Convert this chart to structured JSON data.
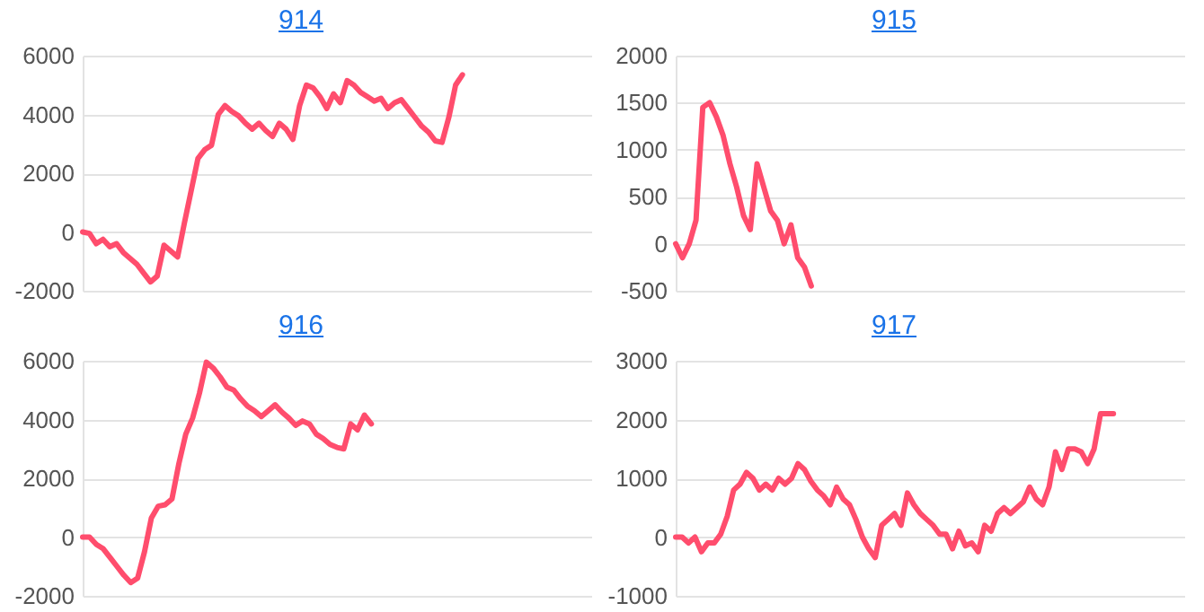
{
  "chart_data": [
    {
      "type": "line",
      "title": "914",
      "categories": [
        null,
        null,
        null,
        null,
        null,
        null,
        null,
        null,
        null,
        null,
        null,
        null,
        null,
        null,
        null,
        null,
        null,
        null,
        null,
        null,
        null,
        null,
        null,
        null,
        null,
        null,
        null,
        null,
        null,
        null,
        null,
        null,
        null,
        null,
        null,
        null,
        null,
        null,
        null,
        null,
        null,
        null,
        null,
        null,
        null,
        null,
        null,
        null,
        null,
        null,
        null,
        null,
        null,
        null,
        null,
        null,
        null,
        null,
        null,
        null,
        null,
        null,
        null,
        null,
        null,
        null,
        null,
        null,
        null,
        null,
        null,
        null,
        null,
        null,
        null,
        null
      ],
      "series": [
        {
          "color": "#ff4d6d",
          "values": [
            0,
            -50,
            -400,
            -250,
            -500,
            -400,
            -700,
            -900,
            -1100,
            -1400,
            -1700,
            -1500,
            -450,
            -650,
            -850,
            300,
            1400,
            2500,
            2800,
            2950,
            4000,
            4300,
            4100,
            3950,
            3700,
            3500,
            3700,
            3450,
            3250,
            3700,
            3500,
            3150,
            4300,
            5000,
            4900,
            4600,
            4200,
            4700,
            4400,
            5150,
            5000,
            4750,
            4600,
            4450,
            4550,
            4200,
            4400,
            4500,
            4200,
            3900,
            3600,
            3400,
            3100,
            3050,
            3900,
            5000,
            5350,
            null,
            null,
            null,
            null,
            null,
            null,
            null,
            null,
            null,
            null,
            null,
            null,
            null,
            null,
            null,
            null,
            null,
            null,
            null
          ]
        }
      ],
      "ylim": [
        -2000,
        6000
      ],
      "yticks": [
        -2000,
        0,
        2000,
        4000,
        6000
      ],
      "grid": "y",
      "tick_labels": "y"
    },
    {
      "type": "line",
      "title": "915",
      "categories": [
        null,
        null,
        null,
        null,
        null,
        null,
        null,
        null,
        null,
        null,
        null,
        null,
        null,
        null,
        null,
        null,
        null,
        null,
        null,
        null,
        null,
        null,
        null,
        null,
        null,
        null,
        null,
        null,
        null,
        null,
        null,
        null,
        null,
        null,
        null,
        null,
        null,
        null,
        null,
        null,
        null,
        null,
        null,
        null,
        null,
        null,
        null,
        null,
        null,
        null,
        null,
        null,
        null,
        null,
        null,
        null,
        null,
        null,
        null,
        null,
        null,
        null,
        null,
        null,
        null,
        null,
        null,
        null,
        null,
        null,
        null,
        null,
        null,
        null,
        null,
        null
      ],
      "series": [
        {
          "color": "#ff4d6d",
          "values": [
            0,
            -150,
            0,
            250,
            1450,
            1500,
            1350,
            1150,
            850,
            600,
            300,
            150,
            850,
            600,
            350,
            250,
            0,
            200,
            -150,
            -250,
            -450,
            null,
            null,
            null,
            null,
            null,
            null,
            null,
            null,
            null,
            null,
            null,
            null,
            null,
            null,
            null,
            null,
            null,
            null,
            null,
            null,
            null,
            null,
            null,
            null,
            null,
            null,
            null,
            null,
            null,
            null,
            null,
            null,
            null,
            null,
            null,
            null,
            null,
            null,
            null,
            null,
            null,
            null,
            null,
            null,
            null,
            null,
            null,
            null,
            null,
            null,
            null,
            null,
            null,
            null,
            null
          ]
        }
      ],
      "ylim": [
        -500,
        2000
      ],
      "yticks": [
        -500,
        0,
        500,
        1000,
        1500,
        2000
      ],
      "grid": "y",
      "tick_labels": "y"
    },
    {
      "type": "line",
      "title": "916",
      "categories": [
        null,
        null,
        null,
        null,
        null,
        null,
        null,
        null,
        null,
        null,
        null,
        null,
        null,
        null,
        null,
        null,
        null,
        null,
        null,
        null,
        null,
        null,
        null,
        null,
        null,
        null,
        null,
        null,
        null,
        null,
        null,
        null,
        null,
        null,
        null,
        null,
        null,
        null,
        null,
        null,
        null,
        null,
        null,
        null,
        null,
        null,
        null,
        null,
        null,
        null,
        null,
        null,
        null,
        null,
        null,
        null,
        null,
        null,
        null,
        null,
        null,
        null,
        null,
        null,
        null,
        null,
        null,
        null,
        null,
        null,
        null,
        null,
        null,
        null,
        null
      ],
      "series": [
        {
          "color": "#ff4d6d",
          "values": [
            0,
            0,
            -250,
            -400,
            -700,
            -1000,
            -1300,
            -1550,
            -1400,
            -500,
            650,
            1050,
            1100,
            1300,
            2500,
            3500,
            4050,
            4900,
            5950,
            5750,
            5450,
            5100,
            5000,
            4700,
            4450,
            4300,
            4100,
            4300,
            4500,
            4250,
            4050,
            3800,
            3950,
            3850,
            3500,
            3350,
            3150,
            3050,
            3000,
            3850,
            3650,
            4150,
            3850,
            null,
            null,
            null,
            null,
            null,
            null,
            null,
            null,
            null,
            null,
            null,
            null,
            null,
            null,
            null,
            null,
            null,
            null,
            null,
            null,
            null,
            null,
            null,
            null,
            null,
            null,
            null,
            null,
            null,
            null,
            null,
            null
          ]
        }
      ],
      "ylim": [
        -2000,
        6000
      ],
      "yticks": [
        -2000,
        0,
        2000,
        4000,
        6000
      ],
      "grid": "y",
      "tick_labels": "y"
    },
    {
      "type": "line",
      "title": "917",
      "categories": [
        null,
        null,
        null,
        null,
        null,
        null,
        null,
        null,
        null,
        null,
        null,
        null,
        null,
        null,
        null,
        null,
        null,
        null,
        null,
        null,
        null,
        null,
        null,
        null,
        null,
        null,
        null,
        null,
        null,
        null,
        null,
        null,
        null,
        null,
        null,
        null,
        null,
        null,
        null,
        null,
        null,
        null,
        null,
        null,
        null,
        null,
        null,
        null,
        null,
        null,
        null,
        null,
        null,
        null,
        null,
        null,
        null,
        null,
        null,
        null,
        null,
        null,
        null,
        null,
        null,
        null,
        null,
        null,
        null,
        null,
        null,
        null,
        null,
        null,
        null,
        null,
        null,
        null,
        null,
        null
      ],
      "series": [
        {
          "color": "#ff4d6d",
          "values": [
            0,
            0,
            -100,
            0,
            -250,
            -100,
            -100,
            50,
            350,
            800,
            900,
            1100,
            1000,
            800,
            900,
            800,
            1000,
            900,
            1000,
            1250,
            1150,
            950,
            800,
            700,
            550,
            850,
            650,
            550,
            300,
            0,
            -200,
            -350,
            200,
            300,
            400,
            200,
            750,
            550,
            400,
            300,
            200,
            50,
            50,
            -200,
            100,
            -150,
            -100,
            -250,
            200,
            100,
            400,
            500,
            400,
            500,
            600,
            850,
            650,
            550,
            850,
            1450,
            1150,
            1500,
            1500,
            1450,
            1250,
            1500,
            2100,
            2100,
            2100,
            null,
            null,
            null,
            null,
            null,
            null,
            null,
            null,
            null,
            null,
            null
          ]
        }
      ],
      "ylim": [
        -1000,
        3000
      ],
      "yticks": [
        -1000,
        0,
        1000,
        2000,
        3000
      ],
      "grid": "y",
      "tick_labels": "y"
    }
  ]
}
